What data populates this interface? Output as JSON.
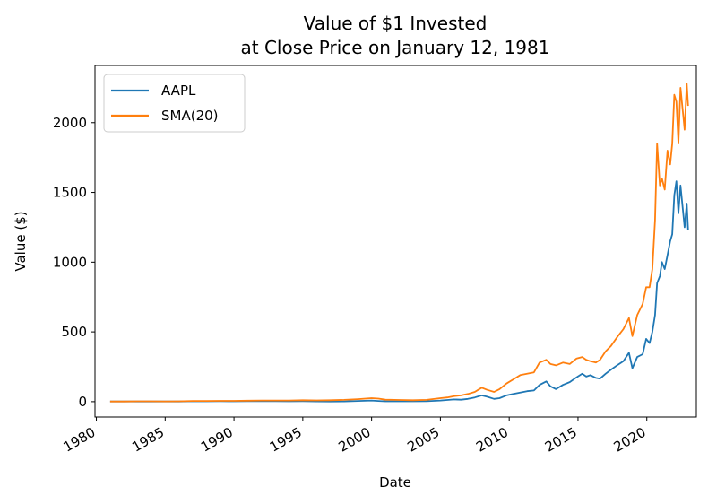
{
  "chart_data": {
    "type": "line",
    "title_line1": "Value of $1 Invested",
    "title_line2": "at Close Price on January 12, 1981",
    "xlabel": "Date",
    "ylabel": "Value ($)",
    "xlim": [
      1979.9,
      2023.6
    ],
    "ylim": [
      -110,
      2410
    ],
    "x_ticks": [
      1980,
      1985,
      1990,
      1995,
      2000,
      2005,
      2010,
      2015,
      2020
    ],
    "x_tick_labels": [
      "1980",
      "1985",
      "1990",
      "1995",
      "2000",
      "2005",
      "2010",
      "2015",
      "2020"
    ],
    "y_ticks": [
      0,
      500,
      1000,
      1500,
      2000
    ],
    "y_tick_labels": [
      "0",
      "500",
      "1000",
      "1500",
      "2000"
    ],
    "grid": false,
    "legend_position": "upper-left",
    "series": [
      {
        "name": "AAPL",
        "color": "#1f77b4",
        "points": [
          [
            1981.0,
            1
          ],
          [
            1982.0,
            1
          ],
          [
            1983.0,
            1.5
          ],
          [
            1984.0,
            1.5
          ],
          [
            1985.0,
            1.2
          ],
          [
            1986.0,
            1.5
          ],
          [
            1987.0,
            3
          ],
          [
            1988.0,
            2.5
          ],
          [
            1989.0,
            3
          ],
          [
            1990.0,
            2.5
          ],
          [
            1991.0,
            3.5
          ],
          [
            1992.0,
            4
          ],
          [
            1993.0,
            3
          ],
          [
            1994.0,
            2.5
          ],
          [
            1995.0,
            3
          ],
          [
            1996.0,
            2
          ],
          [
            1997.0,
            1.5
          ],
          [
            1998.0,
            2
          ],
          [
            1999.0,
            5
          ],
          [
            2000.0,
            8
          ],
          [
            2000.5,
            5
          ],
          [
            2001.0,
            2.5
          ],
          [
            2002.0,
            2.5
          ],
          [
            2003.0,
            2.2
          ],
          [
            2004.0,
            3
          ],
          [
            2005.0,
            8
          ],
          [
            2005.5,
            12
          ],
          [
            2006.0,
            16
          ],
          [
            2006.5,
            14
          ],
          [
            2007.0,
            20
          ],
          [
            2007.5,
            30
          ],
          [
            2008.0,
            45
          ],
          [
            2008.4,
            35
          ],
          [
            2008.9,
            20
          ],
          [
            2009.3,
            25
          ],
          [
            2009.8,
            45
          ],
          [
            2010.3,
            55
          ],
          [
            2010.8,
            65
          ],
          [
            2011.3,
            75
          ],
          [
            2011.8,
            80
          ],
          [
            2012.2,
            120
          ],
          [
            2012.7,
            145
          ],
          [
            2013.0,
            110
          ],
          [
            2013.4,
            90
          ],
          [
            2013.9,
            120
          ],
          [
            2014.4,
            140
          ],
          [
            2014.9,
            175
          ],
          [
            2015.3,
            200
          ],
          [
            2015.6,
            180
          ],
          [
            2015.9,
            190
          ],
          [
            2016.3,
            170
          ],
          [
            2016.6,
            165
          ],
          [
            2017.0,
            200
          ],
          [
            2017.4,
            230
          ],
          [
            2017.9,
            265
          ],
          [
            2018.3,
            290
          ],
          [
            2018.7,
            350
          ],
          [
            2018.95,
            240
          ],
          [
            2019.3,
            320
          ],
          [
            2019.7,
            340
          ],
          [
            2019.95,
            450
          ],
          [
            2020.2,
            420
          ],
          [
            2020.4,
            500
          ],
          [
            2020.6,
            620
          ],
          [
            2020.75,
            850
          ],
          [
            2020.95,
            900
          ],
          [
            2021.1,
            1000
          ],
          [
            2021.3,
            950
          ],
          [
            2021.5,
            1050
          ],
          [
            2021.7,
            1150
          ],
          [
            2021.85,
            1200
          ],
          [
            2022.0,
            1480
          ],
          [
            2022.15,
            1580
          ],
          [
            2022.3,
            1350
          ],
          [
            2022.45,
            1550
          ],
          [
            2022.6,
            1400
          ],
          [
            2022.75,
            1250
          ],
          [
            2022.9,
            1420
          ],
          [
            2023.0,
            1230
          ]
        ]
      },
      {
        "name": "SMA(20)",
        "color": "#ff7f0e",
        "points": [
          [
            1981.0,
            1
          ],
          [
            1982.0,
            1.5
          ],
          [
            1983.0,
            2.5
          ],
          [
            1984.0,
            2.5
          ],
          [
            1985.0,
            2
          ],
          [
            1986.0,
            2.5
          ],
          [
            1987.0,
            5
          ],
          [
            1988.0,
            5
          ],
          [
            1989.0,
            6
          ],
          [
            1990.0,
            6
          ],
          [
            1991.0,
            7
          ],
          [
            1992.0,
            8
          ],
          [
            1993.0,
            8
          ],
          [
            1994.0,
            8
          ],
          [
            1995.0,
            10
          ],
          [
            1996.0,
            9
          ],
          [
            1997.0,
            10
          ],
          [
            1998.0,
            13
          ],
          [
            1999.0,
            18
          ],
          [
            2000.0,
            25
          ],
          [
            2000.5,
            22
          ],
          [
            2001.0,
            14
          ],
          [
            2002.0,
            12
          ],
          [
            2003.0,
            10
          ],
          [
            2004.0,
            13
          ],
          [
            2005.0,
            25
          ],
          [
            2005.5,
            30
          ],
          [
            2006.0,
            40
          ],
          [
            2006.5,
            45
          ],
          [
            2007.0,
            55
          ],
          [
            2007.5,
            70
          ],
          [
            2008.0,
            100
          ],
          [
            2008.4,
            85
          ],
          [
            2008.9,
            70
          ],
          [
            2009.3,
            90
          ],
          [
            2009.8,
            130
          ],
          [
            2010.3,
            160
          ],
          [
            2010.8,
            190
          ],
          [
            2011.3,
            200
          ],
          [
            2011.8,
            210
          ],
          [
            2012.2,
            280
          ],
          [
            2012.7,
            300
          ],
          [
            2013.0,
            270
          ],
          [
            2013.4,
            260
          ],
          [
            2013.9,
            280
          ],
          [
            2014.4,
            270
          ],
          [
            2014.9,
            310
          ],
          [
            2015.3,
            320
          ],
          [
            2015.6,
            300
          ],
          [
            2015.9,
            290
          ],
          [
            2016.3,
            280
          ],
          [
            2016.6,
            300
          ],
          [
            2017.0,
            360
          ],
          [
            2017.4,
            400
          ],
          [
            2017.9,
            470
          ],
          [
            2018.3,
            520
          ],
          [
            2018.7,
            600
          ],
          [
            2018.95,
            470
          ],
          [
            2019.3,
            620
          ],
          [
            2019.7,
            700
          ],
          [
            2019.95,
            820
          ],
          [
            2020.2,
            820
          ],
          [
            2020.4,
            950
          ],
          [
            2020.6,
            1300
          ],
          [
            2020.75,
            1850
          ],
          [
            2020.95,
            1550
          ],
          [
            2021.1,
            1600
          ],
          [
            2021.3,
            1520
          ],
          [
            2021.5,
            1800
          ],
          [
            2021.7,
            1700
          ],
          [
            2021.85,
            1850
          ],
          [
            2022.0,
            2200
          ],
          [
            2022.15,
            2150
          ],
          [
            2022.3,
            1850
          ],
          [
            2022.45,
            2250
          ],
          [
            2022.6,
            2100
          ],
          [
            2022.75,
            1950
          ],
          [
            2022.9,
            2280
          ],
          [
            2023.0,
            2120
          ]
        ]
      }
    ]
  }
}
